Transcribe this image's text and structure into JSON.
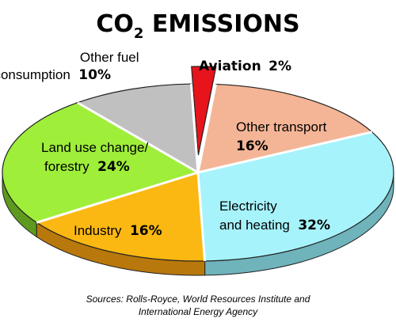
{
  "chart_data": {
    "type": "pie",
    "title_main": "CO",
    "title_subscript": "2",
    "title_rest": " EMISSIONS",
    "slices": [
      {
        "id": "aviation",
        "label_lines": [
          "Aviation"
        ],
        "value": 2,
        "value_label": "2%",
        "color": "#e8141b",
        "side_color": "#a00a10",
        "exploded": true
      },
      {
        "id": "other-transport",
        "label_lines": [
          "Other transport"
        ],
        "value": 16,
        "value_label": "16%",
        "color": "#f4b596",
        "side_color": "#b7816a"
      },
      {
        "id": "electricity",
        "label_lines": [
          "Electricity",
          "and heating"
        ],
        "value": 32,
        "value_label": "32%",
        "color": "#a6f3fb",
        "side_color": "#6fb3bb"
      },
      {
        "id": "industry",
        "label_lines": [
          "Industry"
        ],
        "value": 16,
        "value_label": "16%",
        "color": "#fbb812",
        "side_color": "#b9780c"
      },
      {
        "id": "land-use",
        "label_lines": [
          "Land use change/",
          "forestry"
        ],
        "value": 24,
        "value_label": "24%",
        "color": "#9fee3a",
        "side_color": "#5e9a1e"
      },
      {
        "id": "other-fuel",
        "label_lines": [
          "Other fuel",
          "consumption"
        ],
        "value": 10,
        "value_label": "10%",
        "color": "#c0c0c0",
        "side_color": "#808080"
      }
    ],
    "source_lines": [
      "Sources: Rolls-Royce, World Resources Institute and",
      "International Energy Agency"
    ]
  }
}
